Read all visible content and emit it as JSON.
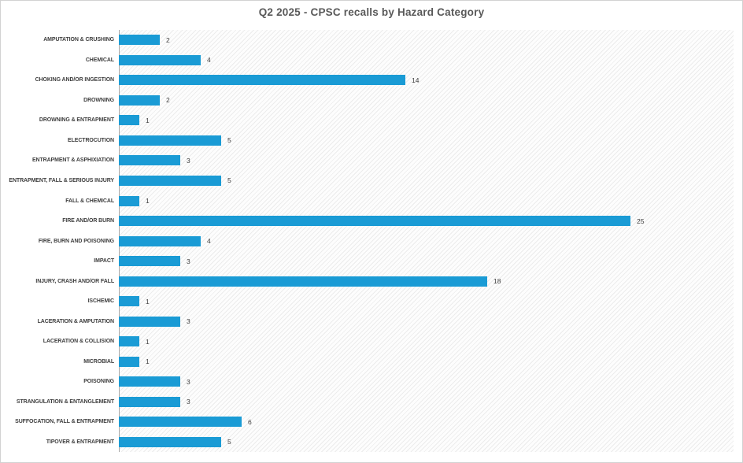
{
  "chart_data": {
    "type": "bar",
    "orientation": "horizontal",
    "title": "Q2 2025 - CPSC recalls by Hazard Category",
    "categories": [
      "AMPUTATION & CRUSHING",
      "CHEMICAL",
      "CHOKING AND/OR INGESTION",
      "DROWNING",
      "DROWNING & ENTRAPMENT",
      "ELECTROCUTION",
      "ENTRAPMENT & ASPHIXIATION",
      "ENTRAPMENT, FALL & SERIOUS INJURY",
      "FALL & CHEMICAL",
      "FIRE AND/OR BURN",
      "FIRE, BURN AND POISONING",
      "IMPACT",
      "INJURY, CRASH AND/OR FALL",
      "ISCHEMIC",
      "LACERATION & AMPUTATION",
      "LACERATION & COLLISION",
      "MICROBIAL",
      "POISONING",
      "STRANGULATION & ENTANGLEMENT",
      "SUFFOCATION, FALL & ENTRAPMENT",
      "TIPOVER & ENTRAPMENT"
    ],
    "values": [
      2,
      4,
      14,
      2,
      1,
      5,
      3,
      5,
      1,
      25,
      4,
      3,
      18,
      1,
      3,
      1,
      1,
      3,
      3,
      6,
      5
    ],
    "xlabel": "",
    "ylabel": "",
    "xlim": [
      0,
      30
    ],
    "grid": false,
    "legend": false,
    "data_labels": true
  },
  "colors": {
    "bar": "#1a9bd5",
    "title": "#595959",
    "category_label": "#3f3f3f",
    "value_label": "#404040",
    "axis_line": "#a8a8a8",
    "frame_border": "#d2d2d2",
    "plot_hatch": "#ececec"
  }
}
